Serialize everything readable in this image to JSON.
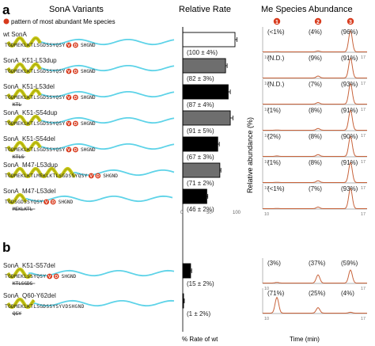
{
  "panels": {
    "a": "a",
    "b": "b"
  },
  "headers": {
    "variants": "SonA Variants",
    "rate": "Relative Rate",
    "abundance": "Me Species Abundance"
  },
  "legend": {
    "marker_text": "pattern of most abundant Me species",
    "marker_color": "#d83a1c"
  },
  "colors": {
    "helix": "#c8c814",
    "helix_dark": "#9a9a10",
    "wave": "#5ed3e8",
    "dot": "#d83a1c",
    "bar_black": "#000000",
    "bar_gray": "#6e6e6e",
    "trace": "#c8643c"
  },
  "peak_labels": [
    "1",
    "2",
    "3"
  ],
  "constructs": [
    {
      "name": "wt SonA",
      "seq": "TGDMEKLKTLSGDSSYQSY",
      "mut": "",
      "dots": [
        "V",
        "D"
      ],
      "tail": "SHGND"
    },
    {
      "name": "SonA_K51-L53dup",
      "seq": "TGDMEKLKTLSGDSSYQSY",
      "mut": "",
      "dots": [
        "V",
        "D"
      ],
      "tail": "SHGND"
    },
    {
      "name": "SonA_K51-L53del",
      "seq": "TGDMEKLKTLSGDSSYQSY",
      "mut": "KTL",
      "dots": [
        "V",
        "D"
      ],
      "tail": "SHGND"
    },
    {
      "name": "SonA_K51-S54dup",
      "seq": "TGDMEKLKTLSGDSSYQSY",
      "mut": "",
      "dots": [
        "V",
        "D"
      ],
      "tail": "SHGND"
    },
    {
      "name": "SonA_K51-S54del",
      "seq": "TGDMEKLKTLSGDSSYQSY",
      "mut": "KTLS",
      "dots": [
        "V",
        "D"
      ],
      "tail": "SHGND"
    },
    {
      "name": "SonA_M47-L53dup",
      "seq": "TGDMEKLKTLMEKLKTLSGDSSYQSY",
      "mut": "",
      "dots": [
        "V",
        "D"
      ],
      "tail": "SHGND"
    },
    {
      "name": "SonA_M47-L53del",
      "seq": "TGDSGDSSYQSY",
      "mut": "MEKLKTL",
      "dots": [
        "V",
        "D"
      ],
      "tail": "SHGND"
    },
    {
      "name": "SonA_K51-S57del",
      "seq": "TGDMEKLSSYQSY",
      "mut": "KTLSGDS",
      "dots": [
        "V",
        "D"
      ],
      "tail": "SHGND"
    },
    {
      "name": "SonA_Q60-Y62del",
      "seq": "TGDMEKLKTLSGDSSYSYVDSHGND",
      "mut": "QSY",
      "dots": [],
      "tail": ""
    }
  ],
  "chart_data": {
    "type": "bar",
    "title": "Relative Rate",
    "xlabel": "% Rate of wt",
    "xlim": [
      0,
      100
    ],
    "categories": [
      "wt SonA",
      "SonA_K51-L53dup",
      "SonA_K51-L53del",
      "SonA_K51-S54dup",
      "SonA_K51-S54del",
      "SonA_M47-L53dup",
      "SonA_M47-L53del",
      "SonA_K51-S57del",
      "SonA_Q60-Y62del"
    ],
    "values": [
      100,
      82,
      87,
      91,
      67,
      71,
      46,
      15,
      1
    ],
    "errors": [
      4,
      3,
      4,
      5,
      3,
      2,
      2,
      2,
      2
    ],
    "bar_fill": [
      "white",
      "gray",
      "black",
      "gray",
      "black",
      "gray",
      "black",
      "black",
      "black"
    ],
    "labels": [
      "(100 ± 4%)",
      "(82 ± 3%)",
      "(87 ± 4%)",
      "(91 ± 5%)",
      "(67 ± 3%)",
      "(71 ± 2%)",
      "(46 ± 2%)",
      "(15 ± 2%)",
      "(1 ± 2%)"
    ],
    "xticks": [
      "0",
      "50",
      "100"
    ]
  },
  "abundance": {
    "title": "Me Species Abundance",
    "ylabel": "Relative abundance (%)",
    "xlabel": "Time (min)",
    "xticks": [
      "10",
      "17"
    ],
    "rows": [
      {
        "labels": [
          "(<1%)",
          "(4%)",
          "(96%)"
        ],
        "values": [
          1,
          4,
          96
        ]
      },
      {
        "labels": [
          "(N.D.)",
          "(9%)",
          "(91%)"
        ],
        "values": [
          0,
          9,
          91
        ]
      },
      {
        "labels": [
          "(N.D.)",
          "(7%)",
          "(93%)"
        ],
        "values": [
          0,
          7,
          93
        ]
      },
      {
        "labels": [
          "(1%)",
          "(8%)",
          "(91%)"
        ],
        "values": [
          1,
          8,
          91
        ]
      },
      {
        "labels": [
          "(2%)",
          "(8%)",
          "(90%)"
        ],
        "values": [
          2,
          8,
          90
        ]
      },
      {
        "labels": [
          "(1%)",
          "(8%)",
          "(91%)"
        ],
        "values": [
          1,
          8,
          91
        ]
      },
      {
        "labels": [
          "(<1%)",
          "(7%)",
          "(93%)"
        ],
        "values": [
          1,
          7,
          93
        ]
      },
      {
        "labels": [
          "(3%)",
          "(37%)",
          "(59%)"
        ],
        "values": [
          3,
          37,
          59
        ]
      },
      {
        "labels": [
          "(71%)",
          "(25%)",
          "(4%)"
        ],
        "values": [
          71,
          25,
          4
        ]
      }
    ]
  }
}
